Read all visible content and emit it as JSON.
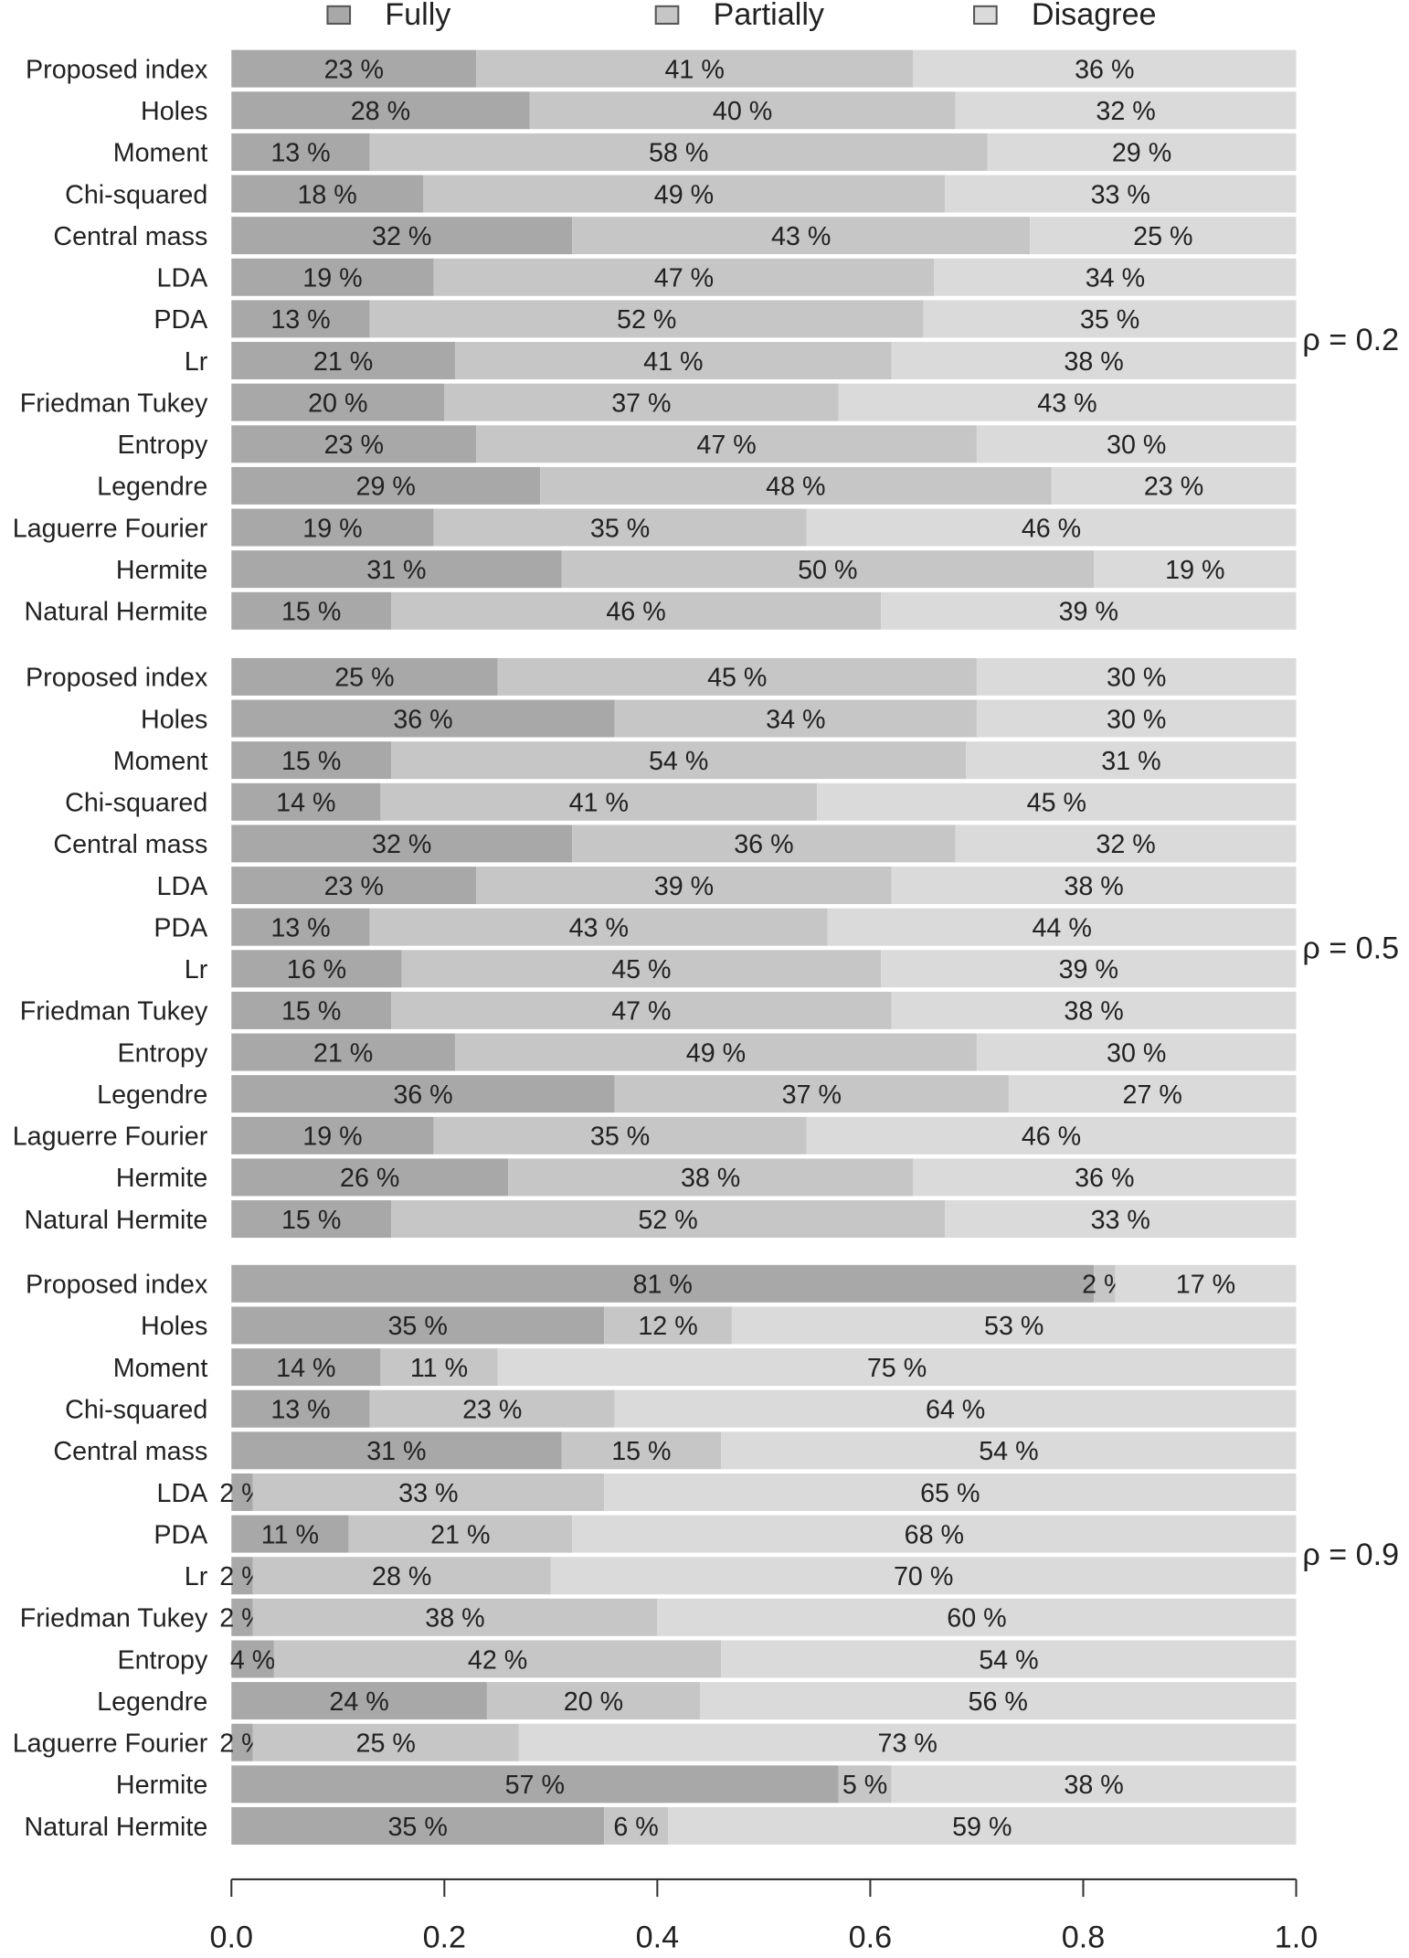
{
  "chart_data": [
    {
      "type": "bar",
      "orientation": "horizontal",
      "stacked": true,
      "annotation": "ρ = 0.2",
      "categories": [
        "Proposed index",
        "Holes",
        "Moment",
        "Chi-squared",
        "Central mass",
        "LDA",
        "PDA",
        "Lr",
        "Friedman Tukey",
        "Entropy",
        "Legendre",
        "Laguerre Fourier",
        "Hermite",
        "Natural Hermite"
      ],
      "series": [
        {
          "name": "Fully",
          "color": "#a8a8a8",
          "values": [
            0.23,
            0.28,
            0.13,
            0.18,
            0.32,
            0.19,
            0.13,
            0.21,
            0.2,
            0.23,
            0.29,
            0.19,
            0.31,
            0.15
          ],
          "value_labels": [
            "23 %",
            "28 %",
            "13 %",
            "18 %",
            "32 %",
            "19 %",
            "13 %",
            "21 %",
            "20 %",
            "23 %",
            "29 %",
            "19 %",
            "31 %",
            "15 %"
          ]
        },
        {
          "name": "Partially",
          "color": "#c6c6c6",
          "values": [
            0.41,
            0.4,
            0.58,
            0.49,
            0.43,
            0.47,
            0.52,
            0.41,
            0.37,
            0.47,
            0.48,
            0.35,
            0.5,
            0.46
          ],
          "value_labels": [
            "41 %",
            "40 %",
            "58 %",
            "49 %",
            "43 %",
            "47 %",
            "52 %",
            "41 %",
            "37 %",
            "47 %",
            "48 %",
            "35 %",
            "50 %",
            "46 %"
          ]
        },
        {
          "name": "Disagree",
          "color": "#dadada",
          "values": [
            0.36,
            0.32,
            0.29,
            0.33,
            0.25,
            0.34,
            0.35,
            0.38,
            0.43,
            0.3,
            0.23,
            0.46,
            0.19,
            0.39
          ],
          "value_labels": [
            "36 %",
            "32 %",
            "29 %",
            "33 %",
            "25 %",
            "34 %",
            "35 %",
            "38 %",
            "43 %",
            "30 %",
            "23 %",
            "46 %",
            "19 %",
            "39 %"
          ]
        }
      ]
    },
    {
      "type": "bar",
      "orientation": "horizontal",
      "stacked": true,
      "annotation": "ρ = 0.5",
      "categories": [
        "Proposed index",
        "Holes",
        "Moment",
        "Chi-squared",
        "Central mass",
        "LDA",
        "PDA",
        "Lr",
        "Friedman Tukey",
        "Entropy",
        "Legendre",
        "Laguerre Fourier",
        "Hermite",
        "Natural Hermite"
      ],
      "series": [
        {
          "color": "#a8a8a8",
          "values": [
            0.25,
            0.36,
            0.15,
            0.14,
            0.32,
            0.23,
            0.13,
            0.16,
            0.15,
            0.21,
            0.36,
            0.19,
            0.26,
            0.15
          ],
          "value_labels": [
            "25 %",
            "36 %",
            "15 %",
            "14 %",
            "32 %",
            "23 %",
            "13 %",
            "16 %",
            "15 %",
            "21 %",
            "36 %",
            "19 %",
            "26 %",
            "15 %"
          ]
        },
        {
          "color": "#c6c6c6",
          "values": [
            0.45,
            0.34,
            0.54,
            0.41,
            0.36,
            0.39,
            0.43,
            0.45,
            0.47,
            0.49,
            0.37,
            0.35,
            0.38,
            0.52
          ],
          "value_labels": [
            "45 %",
            "34 %",
            "54 %",
            "41 %",
            "36 %",
            "39 %",
            "43 %",
            "45 %",
            "47 %",
            "49 %",
            "37 %",
            "35 %",
            "38 %",
            "52 %"
          ]
        },
        {
          "color": "#dadada",
          "values": [
            0.3,
            0.3,
            0.31,
            0.45,
            0.32,
            0.38,
            0.44,
            0.39,
            0.38,
            0.3,
            0.27,
            0.46,
            0.36,
            0.33
          ],
          "value_labels": [
            "30 %",
            "30 %",
            "31 %",
            "45 %",
            "32 %",
            "38 %",
            "44 %",
            "39 %",
            "38 %",
            "30 %",
            "27 %",
            "46 %",
            "36 %",
            "33 %"
          ]
        }
      ]
    },
    {
      "type": "bar",
      "orientation": "horizontal",
      "stacked": true,
      "annotation": "ρ = 0.9",
      "categories": [
        "Proposed index",
        "Holes",
        "Moment",
        "Chi-squared",
        "Central mass",
        "LDA",
        "PDA",
        "Lr",
        "Friedman Tukey",
        "Entropy",
        "Legendre",
        "Laguerre Fourier",
        "Hermite",
        "Natural Hermite"
      ],
      "series": [
        {
          "color": "#a8a8a8",
          "values": [
            0.81,
            0.35,
            0.14,
            0.13,
            0.31,
            0.02,
            0.11,
            0.02,
            0.02,
            0.04,
            0.24,
            0.02,
            0.57,
            0.35
          ],
          "value_labels": [
            "81 %",
            "35 %",
            "14 %",
            "13 %",
            "31 %",
            "2 %",
            "11 %",
            "2 %",
            "2 %",
            "4 %",
            "24 %",
            "2 %",
            "57 %",
            "35 %"
          ]
        },
        {
          "color": "#c6c6c6",
          "values": [
            0.02,
            0.12,
            0.11,
            0.23,
            0.15,
            0.33,
            0.21,
            0.28,
            0.38,
            0.42,
            0.2,
            0.25,
            0.05,
            0.06
          ],
          "value_labels": [
            "2 %",
            "12 %",
            "11 %",
            "23 %",
            "15 %",
            "33 %",
            "21 %",
            "28 %",
            "38 %",
            "42 %",
            "20 %",
            "25 %",
            "5 %",
            "6 %"
          ]
        },
        {
          "color": "#dadada",
          "values": [
            0.17,
            0.53,
            0.75,
            0.64,
            0.54,
            0.65,
            0.68,
            0.7,
            0.6,
            0.54,
            0.56,
            0.73,
            0.38,
            0.59
          ],
          "value_labels": [
            "17 %",
            "53 %",
            "75 %",
            "64 %",
            "54 %",
            "65 %",
            "68 %",
            "70 %",
            "60 %",
            "54 %",
            "56 %",
            "73 %",
            "38 %",
            "59 %"
          ]
        }
      ],
      "xlim": [
        0,
        1
      ],
      "xticks": [
        {
          "value": 0,
          "label": "0.0"
        },
        0.2,
        0.4,
        0.6,
        0.8,
        {
          "value": 1,
          "label": "1.0"
        }
      ]
    }
  ]
}
